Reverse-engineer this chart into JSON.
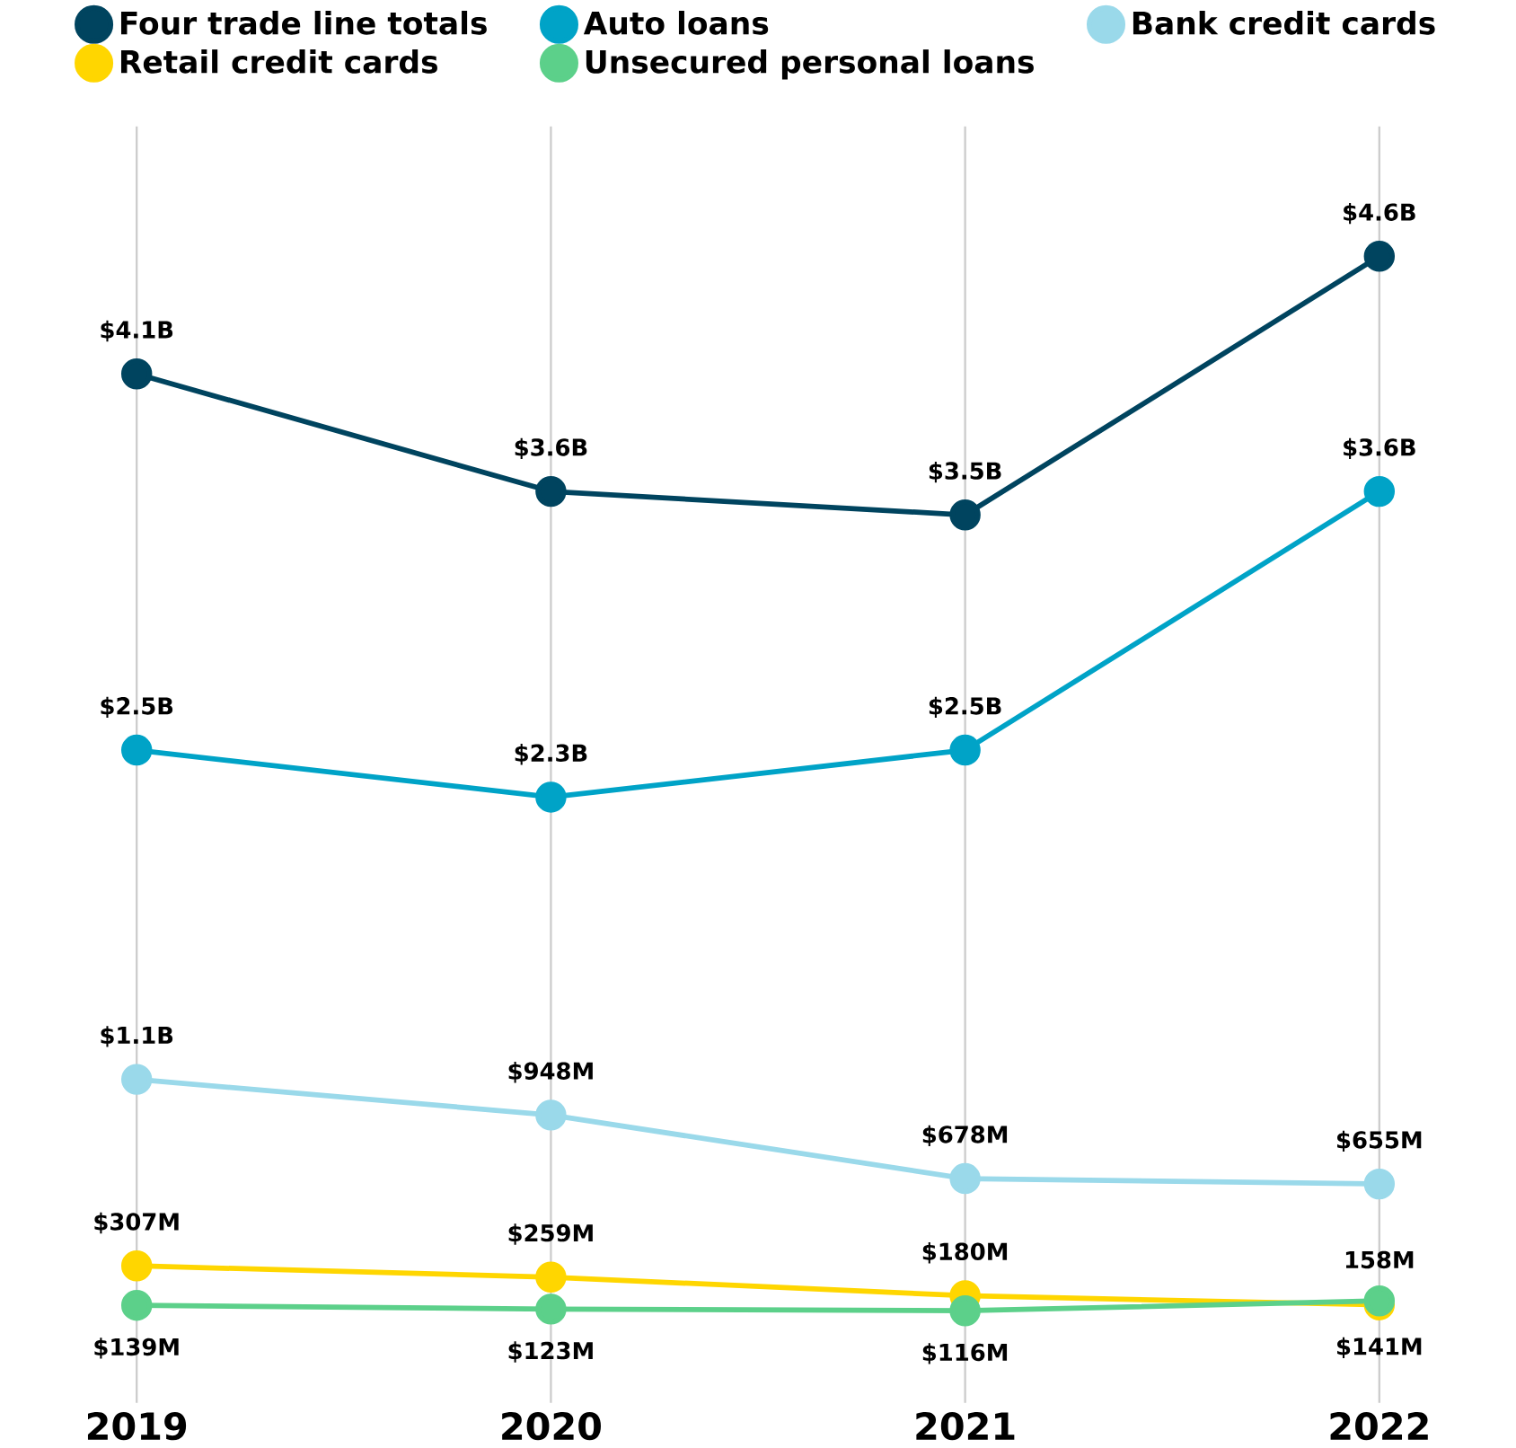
{
  "chart_data": {
    "type": "line",
    "categories": [
      "2019",
      "2020",
      "2021",
      "2022"
    ],
    "grid": "x",
    "legend": "top",
    "marker": "circle",
    "line_style": "solid",
    "series": [
      {
        "name": "Four trade line totals",
        "color": "#00445f",
        "values": [
          4100000000,
          3600000000,
          3500000000,
          4600000000
        ],
        "value_labels": [
          "$4.1B",
          "$3.6B",
          "$3.5B",
          "$4.6B"
        ]
      },
      {
        "name": "Auto loans",
        "color": "#00a3c7",
        "values": [
          2500000000,
          2300000000,
          2500000000,
          3600000000
        ],
        "value_labels": [
          "$2.5B",
          "$2.3B",
          "$2.5B",
          "$3.6B"
        ]
      },
      {
        "name": "Bank credit cards",
        "color": "#9ad9ea",
        "values": [
          1100000000,
          948000000,
          678000000,
          655000000
        ],
        "value_labels": [
          "$1.1B",
          "$948M",
          "$678M",
          "$655M"
        ]
      },
      {
        "name": "Retail credit cards",
        "color": "#ffd600",
        "values": [
          307000000,
          259000000,
          180000000,
          141000000
        ],
        "value_labels": [
          "$307M",
          "$259M",
          "$180M",
          "$141M"
        ]
      },
      {
        "name": "Unsecured personal loans",
        "color": "#5cd08a",
        "values": [
          139000000,
          123000000,
          116000000,
          158000000
        ],
        "value_labels": [
          "$139M",
          "$123M",
          "$116M",
          "158M"
        ]
      }
    ]
  }
}
